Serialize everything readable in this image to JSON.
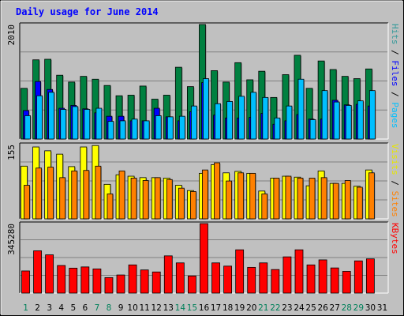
{
  "chart_data": {
    "type": "bar",
    "title": "Daily usage for June 2014",
    "days": [
      {
        "label": "1",
        "weekend": true
      },
      {
        "label": "2",
        "weekend": false
      },
      {
        "label": "3",
        "weekend": false
      },
      {
        "label": "4",
        "weekend": false
      },
      {
        "label": "5",
        "weekend": false
      },
      {
        "label": "6",
        "weekend": false
      },
      {
        "label": "7",
        "weekend": true
      },
      {
        "label": "8",
        "weekend": true
      },
      {
        "label": "9",
        "weekend": false
      },
      {
        "label": "10",
        "weekend": false
      },
      {
        "label": "11",
        "weekend": false
      },
      {
        "label": "12",
        "weekend": false
      },
      {
        "label": "13",
        "weekend": false
      },
      {
        "label": "14",
        "weekend": true
      },
      {
        "label": "15",
        "weekend": true
      },
      {
        "label": "16",
        "weekend": false
      },
      {
        "label": "17",
        "weekend": false
      },
      {
        "label": "18",
        "weekend": false
      },
      {
        "label": "19",
        "weekend": false
      },
      {
        "label": "20",
        "weekend": false
      },
      {
        "label": "21",
        "weekend": true
      },
      {
        "label": "22",
        "weekend": true
      },
      {
        "label": "23",
        "weekend": false
      },
      {
        "label": "24",
        "weekend": false
      },
      {
        "label": "25",
        "weekend": false
      },
      {
        "label": "26",
        "weekend": false
      },
      {
        "label": "27",
        "weekend": false
      },
      {
        "label": "28",
        "weekend": true
      },
      {
        "label": "29",
        "weekend": true
      },
      {
        "label": "30",
        "weekend": false
      },
      {
        "label": "31",
        "weekend": false
      }
    ],
    "panels": [
      {
        "max_label": "2010",
        "ymax": 2010,
        "axis_labels": [
          {
            "text": "Hits",
            "color": "#339999"
          },
          {
            "text": " / ",
            "color": "#000000"
          },
          {
            "text": "Files",
            "color": "#0000ff"
          },
          {
            "text": " / ",
            "color": "#000000"
          },
          {
            "text": "Pages",
            "color": "#00bfff"
          }
        ],
        "series": [
          {
            "name": "Hits",
            "color": "#008040",
            "values": [
              890,
              1390,
              1400,
              1120,
              1000,
              1100,
              1050,
              940,
              760,
              770,
              930,
              700,
              770,
              1260,
              920,
              2010,
              1200,
              1000,
              1340,
              1040,
              1190,
              730,
              1130,
              1470,
              890,
              1370,
              1220,
              1100,
              1060,
              1230
            ]
          },
          {
            "name": "Files",
            "color": "#0000ff",
            "values": [
              500,
              1010,
              870,
              540,
              590,
              530,
              460,
              400,
              400,
              320,
              320,
              540,
              390,
              320,
              480,
              990,
              420,
              370,
              370,
              380,
              450,
              260,
              320,
              430,
              350,
              350,
              680,
              600,
              610,
              580
            ]
          },
          {
            "name": "Pages",
            "color": "#00bfff",
            "values": [
              410,
              760,
              820,
              520,
              570,
              520,
              540,
              310,
              320,
              350,
              320,
              410,
              390,
              400,
              580,
              1060,
              620,
              660,
              750,
              820,
              730,
              370,
              580,
              1050,
              340,
              850,
              650,
              590,
              670,
              850
            ]
          }
        ]
      },
      {
        "max_label": "155",
        "ymax": 155,
        "axis_labels": [
          {
            "text": "Visits",
            "color": "#e6e600"
          },
          {
            "text": " / ",
            "color": "#000000"
          },
          {
            "text": "Sites",
            "color": "#ff8000"
          }
        ],
        "series": [
          {
            "name": "Visits",
            "color": "#ffff00",
            "values": [
              110,
              150,
              142,
              135,
              109,
              150,
              153,
              72,
              92,
              89,
              86,
              86,
              85,
              70,
              59,
              95,
              113,
              96,
              99,
              95,
              58,
              85,
              89,
              87,
              69,
              100,
              74,
              74,
              68,
              102
            ]
          },
          {
            "name": "Sites",
            "color": "#ff8000",
            "values": [
              70,
              106,
              108,
              86,
              100,
              101,
              110,
              52,
              100,
              85,
              80,
              86,
              82,
              64,
              57,
              102,
              117,
              79,
              96,
              95,
              52,
              85,
              89,
              85,
              85,
              86,
              74,
              80,
              66,
              96
            ]
          }
        ]
      },
      {
        "max_label": "345280",
        "ymax": 345280,
        "axis_labels": [
          {
            "text": "KBytes",
            "color": "#ff0000"
          }
        ],
        "series": [
          {
            "name": "KBytes",
            "color": "#ff0000",
            "values": [
              110000,
              210000,
              190000,
              137000,
              124000,
              130000,
              120000,
              77000,
              90000,
              140000,
              115000,
              105000,
              185000,
              150000,
              85000,
              345280,
              150000,
              134000,
              215000,
              128000,
              150000,
              117000,
              180000,
              215000,
              140000,
              165000,
              125000,
              108000,
              160000,
              170000
            ]
          }
        ]
      }
    ]
  }
}
